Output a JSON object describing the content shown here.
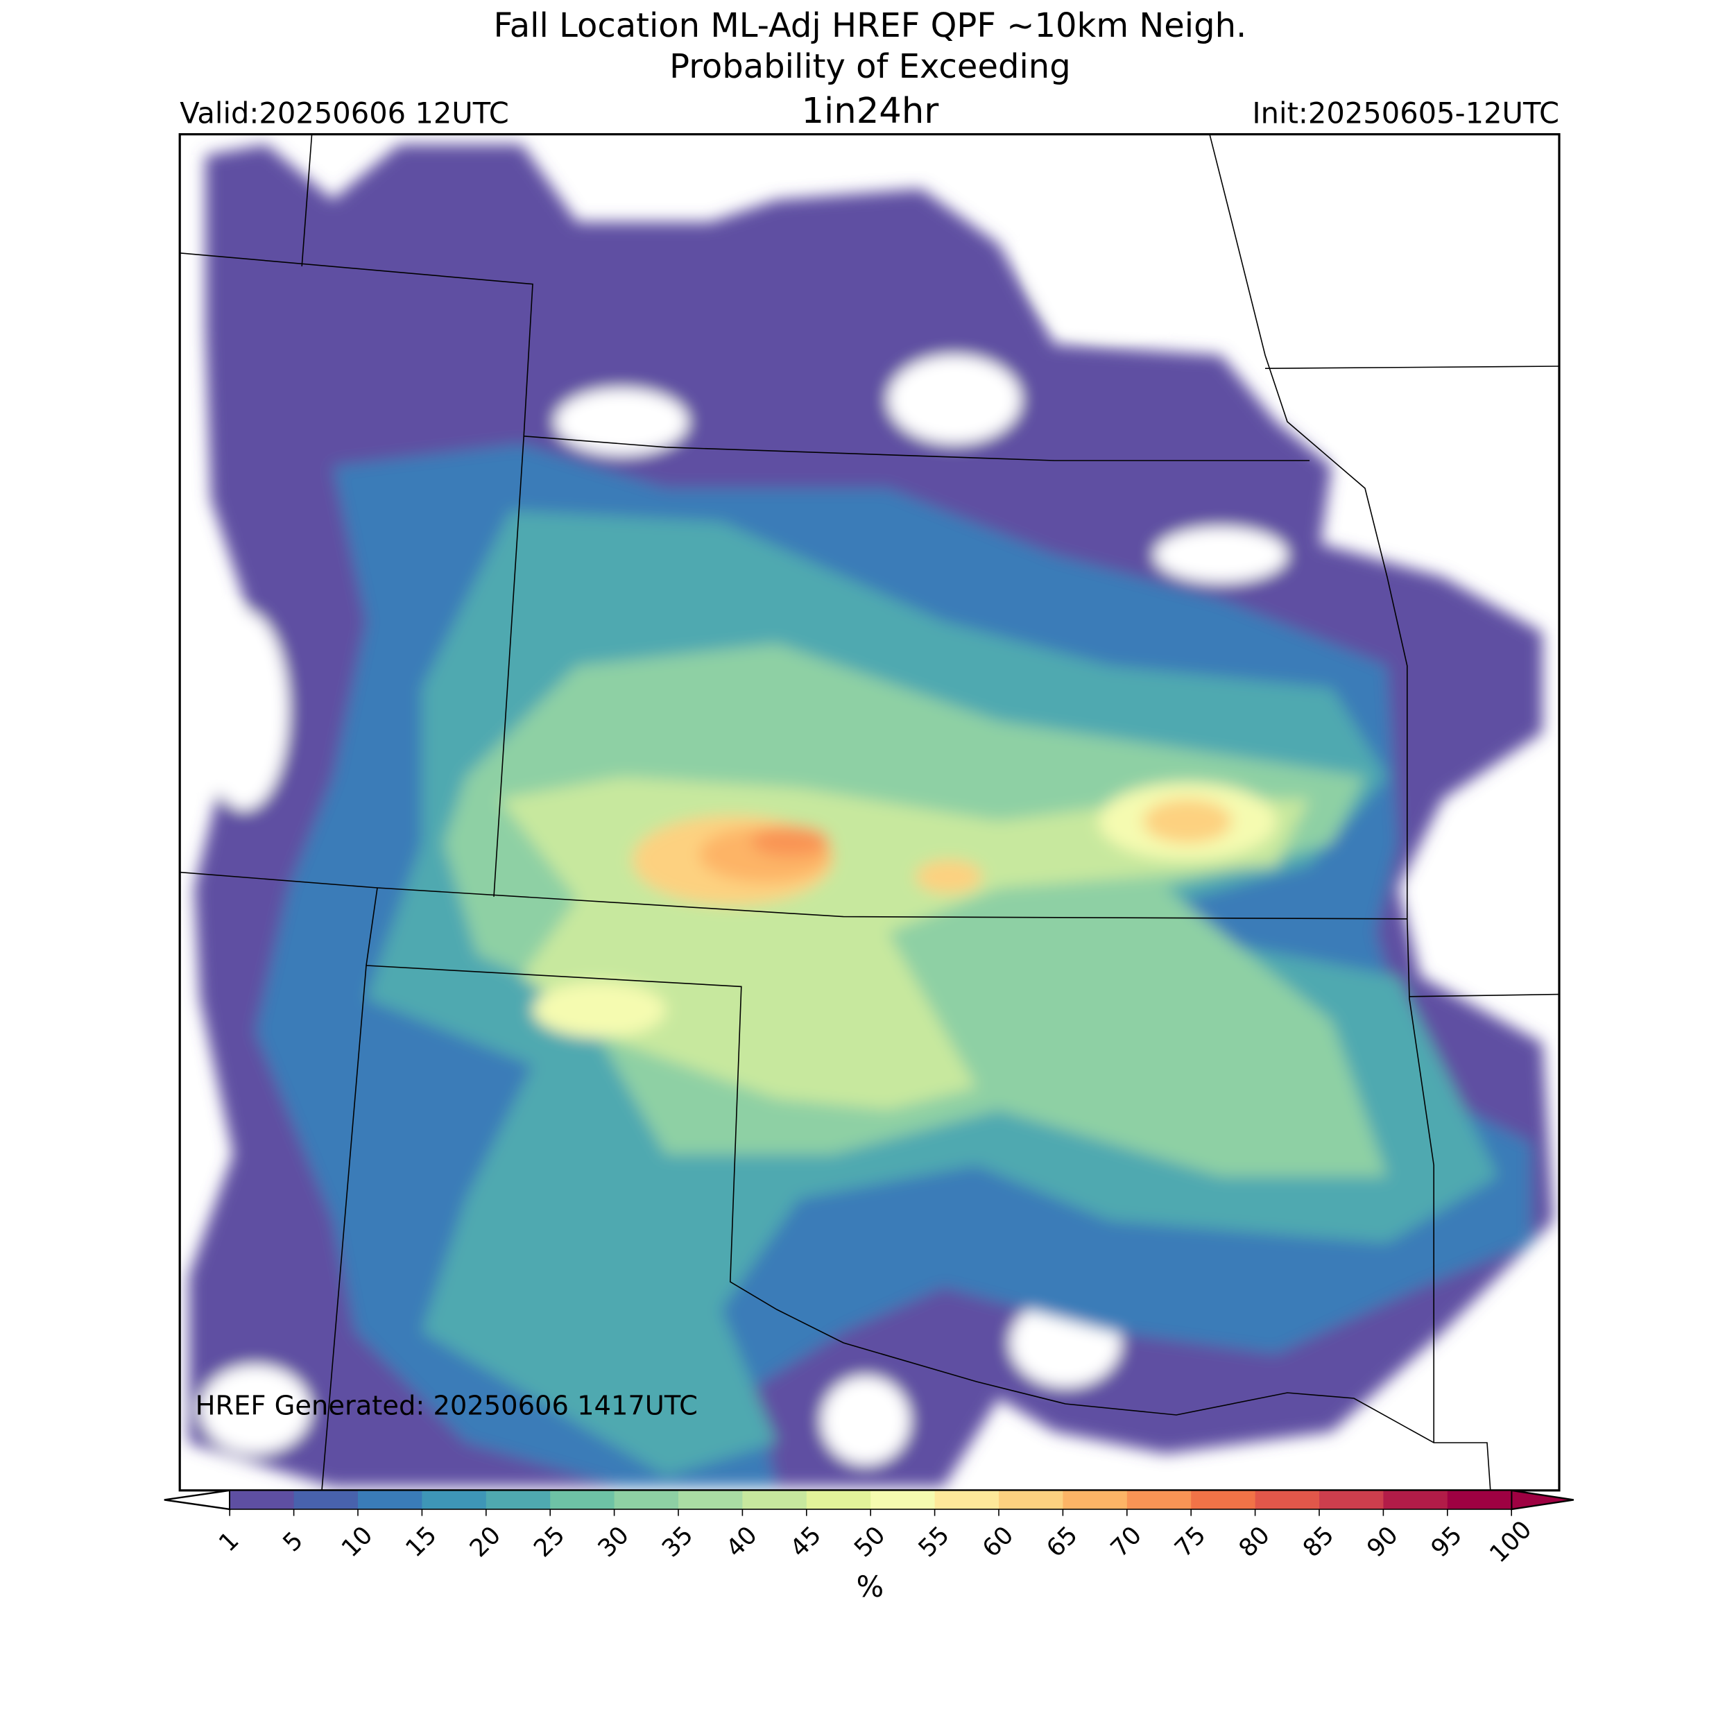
{
  "title": [
    "Fall Location ML-Adj HREF QPF ~10km Neigh.",
    "Probability of Exceeding"
  ],
  "subtitle": "1in24hr",
  "valid": "Valid:20250606 12UTC",
  "init": "Init:20250605-12UTC",
  "footnote": "HREF Generated: 20250606 1417UTC",
  "colorbar": {
    "label": "%",
    "ticks": [
      1,
      5,
      10,
      15,
      20,
      25,
      30,
      35,
      40,
      45,
      50,
      55,
      60,
      65,
      70,
      75,
      80,
      85,
      90,
      95,
      100
    ],
    "colors": [
      "#5e4fa2",
      "#4862ad",
      "#3a7cb8",
      "#3e96b7",
      "#4fa9b0",
      "#6ec2a5",
      "#8ed0a4",
      "#aadca4",
      "#c7e89e",
      "#e2f39a",
      "#f5fbb0",
      "#fee89a",
      "#fdd180",
      "#fdb466",
      "#f99455",
      "#f17347",
      "#e1574a",
      "#cd3e4d",
      "#b21c48",
      "#9e0142"
    ],
    "under_color": "#ffffff",
    "over_color": "#9e0142"
  }
}
